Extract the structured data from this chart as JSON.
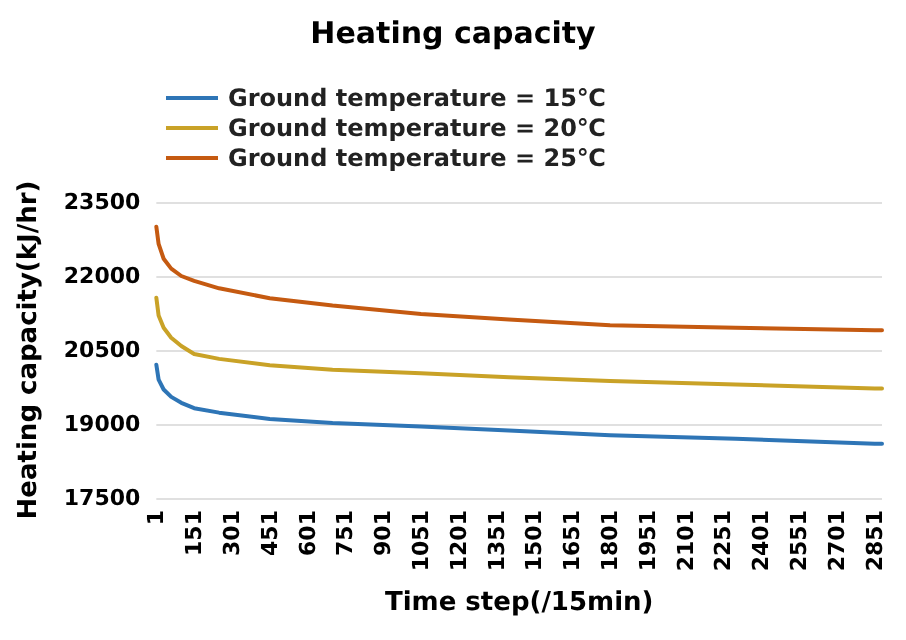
{
  "chart_data": {
    "type": "line",
    "title": "Heating capacity",
    "xlabel": "Time step(/15min)",
    "ylabel": "Heating capacity(kJ/hr)",
    "x": [
      1,
      10,
      30,
      60,
      100,
      151,
      250,
      451,
      700,
      1051,
      1400,
      1801,
      2300,
      2851,
      2880
    ],
    "series": [
      {
        "name": "Ground temperature = 15℃",
        "color": "#2e75b6",
        "values": [
          20200,
          19900,
          19700,
          19550,
          19430,
          19320,
          19230,
          19100,
          19020,
          18950,
          18870,
          18770,
          18700,
          18600,
          18600
        ]
      },
      {
        "name": "Ground temperature = 20℃",
        "color": "#c9a227",
        "values": [
          21560,
          21200,
          20950,
          20750,
          20580,
          20420,
          20320,
          20190,
          20100,
          20030,
          19950,
          19870,
          19800,
          19720,
          19720
        ]
      },
      {
        "name": "Ground temperature = 25℃",
        "color": "#c55a11",
        "values": [
          23000,
          22650,
          22350,
          22150,
          22000,
          21900,
          21750,
          21550,
          21400,
          21230,
          21120,
          21000,
          20950,
          20900,
          20900
        ]
      }
    ],
    "xlim": [
      1,
      2880
    ],
    "xticks": [
      1,
      151,
      301,
      451,
      601,
      751,
      901,
      1051,
      1201,
      1351,
      1501,
      1651,
      1801,
      1951,
      2101,
      2251,
      2401,
      2551,
      2701,
      2851
    ],
    "ylim": [
      17500,
      23500
    ],
    "yticks": [
      17500,
      19000,
      20500,
      22000,
      23500
    ],
    "grid": "y",
    "legend": "top left",
    "marker": "none",
    "line_style": "solid"
  }
}
